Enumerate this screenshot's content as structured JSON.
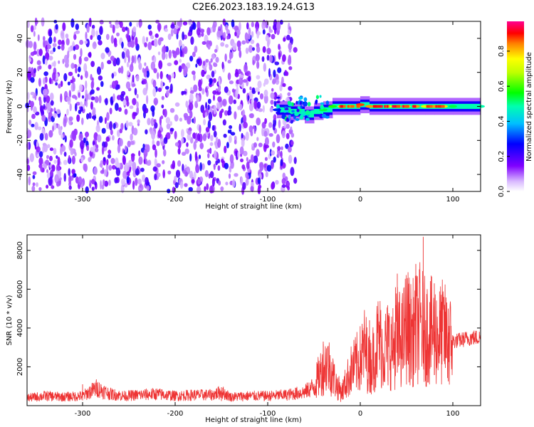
{
  "title": "C2E6.2023.183.19.24.G13",
  "colors": {
    "line": "#ee3333",
    "axis": "#000000"
  },
  "chart_data": [
    {
      "type": "heatmap",
      "xlabel": "Height of straight line (km)",
      "ylabel": "Frequency (Hz)",
      "xlim": [
        -360,
        130
      ],
      "ylim": [
        -50,
        50
      ],
      "x_ticks": [
        "-300",
        "-200",
        "-100",
        "0",
        "100"
      ],
      "x_tick_values": [
        -300,
        -200,
        -100,
        0,
        100
      ],
      "y_ticks": [
        "40",
        "20",
        "0",
        "-20",
        "-40"
      ],
      "y_tick_values": [
        40,
        20,
        0,
        -20,
        -40
      ],
      "noise_region_x": [
        -360,
        -70
      ],
      "noise_level": 0.15,
      "trace": [
        {
          "x": -90,
          "y": -2,
          "amp": 0.3
        },
        {
          "x": -75,
          "y": -3,
          "amp": 0.4
        },
        {
          "x": -60,
          "y": -5,
          "amp": 0.45
        },
        {
          "x": -50,
          "y": -3,
          "amp": 0.5
        },
        {
          "x": -40,
          "y": -2,
          "amp": 0.55
        },
        {
          "x": -30,
          "y": 0,
          "amp": 0.6
        },
        {
          "x": -20,
          "y": 0,
          "amp": 0.8
        },
        {
          "x": -10,
          "y": 0,
          "amp": 0.85
        },
        {
          "x": 0,
          "y": 1,
          "amp": 0.9
        },
        {
          "x": 10,
          "y": 0,
          "amp": 0.85
        },
        {
          "x": 20,
          "y": 0,
          "amp": 0.8
        },
        {
          "x": 30,
          "y": 0,
          "amp": 0.75
        },
        {
          "x": 40,
          "y": 0,
          "amp": 0.85
        },
        {
          "x": 50,
          "y": 0,
          "amp": 0.8
        },
        {
          "x": 60,
          "y": 0,
          "amp": 0.85
        },
        {
          "x": 70,
          "y": 0,
          "amp": 0.75
        },
        {
          "x": 80,
          "y": 0,
          "amp": 0.85
        },
        {
          "x": 90,
          "y": 0,
          "amp": 0.8
        },
        {
          "x": 100,
          "y": 0,
          "amp": 0.55
        },
        {
          "x": 110,
          "y": 0,
          "amp": 0.5
        },
        {
          "x": 120,
          "y": 0,
          "amp": 0.5
        },
        {
          "x": 130,
          "y": 0,
          "amp": 0.5
        }
      ],
      "colorbar": {
        "label": "Normalized spectral amplitude",
        "ticks": [
          "0.0",
          "0.2",
          "0.4",
          "0.6",
          "0.8"
        ],
        "tick_values": [
          0.0,
          0.2,
          0.4,
          0.6,
          0.8
        ],
        "range": [
          0,
          0.97
        ],
        "colormap": "rainbow (white-violet-blue-cyan-green-yellow-red-magenta)"
      }
    },
    {
      "type": "line",
      "xlabel": "Height of straight line (km)",
      "ylabel": "SNR (10 * v/v)",
      "xlim": [
        -360,
        130
      ],
      "ylim": [
        0,
        8800
      ],
      "x_ticks": [
        "-300",
        "-200",
        "-100",
        "0",
        "100"
      ],
      "x_tick_values": [
        -300,
        -200,
        -100,
        0,
        100
      ],
      "y_ticks": [
        "2000",
        "4000",
        "6000",
        "8000"
      ],
      "y_tick_values": [
        2000,
        4000,
        6000,
        8000
      ],
      "series": [
        {
          "x": [
            -360,
            -340,
            -320,
            -300,
            -285,
            -270,
            -255,
            -240,
            -220,
            -200,
            -180,
            -160,
            -150,
            -140,
            -120,
            -100,
            -80,
            -60,
            -50,
            -45,
            -40,
            -35,
            -30,
            -25,
            -20,
            -10,
            0,
            5,
            10,
            15,
            20,
            25,
            30,
            35,
            40,
            45,
            50,
            55,
            60,
            65,
            70,
            75,
            80,
            85,
            90,
            95,
            100,
            110,
            120,
            130
          ],
          "y": [
            400,
            500,
            450,
            500,
            900,
            600,
            500,
            550,
            600,
            500,
            550,
            550,
            700,
            450,
            500,
            500,
            550,
            700,
            1000,
            1500,
            2000,
            2200,
            1600,
            1000,
            700,
            1800,
            2400,
            3000,
            2000,
            2600,
            3500,
            2800,
            3200,
            2900,
            3600,
            3300,
            4200,
            3700,
            3900,
            4300,
            3800,
            3900,
            3700,
            3600,
            3800,
            3300,
            3300,
            3400,
            3500,
            3500
          ],
          "y_peaks": [
            {
              "x": -300,
              "y": 1100
            },
            {
              "x": -150,
              "y": 950
            },
            {
              "x": -40,
              "y": 3300
            },
            {
              "x": 10,
              "y": 4400
            },
            {
              "x": 30,
              "y": 4200
            },
            {
              "x": 38,
              "y": 6100
            },
            {
              "x": 40,
              "y": 6800
            },
            {
              "x": 55,
              "y": 5500
            },
            {
              "x": 60,
              "y": 7300
            },
            {
              "x": 68,
              "y": 8700
            },
            {
              "x": 80,
              "y": 6300
            },
            {
              "x": 95,
              "y": 5000
            }
          ]
        }
      ]
    }
  ]
}
